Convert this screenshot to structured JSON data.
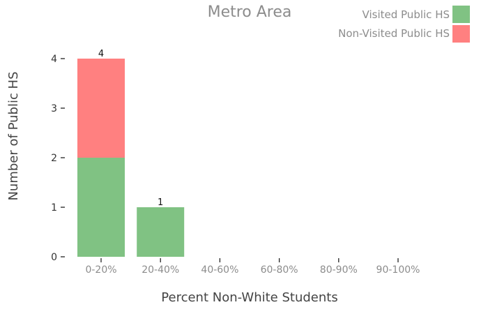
{
  "chart_data": {
    "type": "bar",
    "stacked": true,
    "title": "Metro Area",
    "xlabel": "Percent Non-White Students",
    "ylabel": "Number of Public HS",
    "categories": [
      "0-20%",
      "20-40%",
      "40-60%",
      "60-80%",
      "80-90%",
      "90-100%"
    ],
    "series": [
      {
        "name": "Visited Public HS",
        "values": [
          2,
          1,
          0,
          0,
          0,
          0
        ],
        "color": "#80c283"
      },
      {
        "name": "Non-Visited Public HS",
        "values": [
          2,
          0,
          0,
          0,
          0,
          0
        ],
        "color": "#ff8080"
      }
    ],
    "totals": [
      4,
      1,
      null,
      null,
      null,
      null
    ],
    "ylim": [
      0,
      4
    ],
    "yticks": [
      0,
      1,
      2,
      3,
      4
    ],
    "legend_position": "top-right",
    "grid": false
  }
}
